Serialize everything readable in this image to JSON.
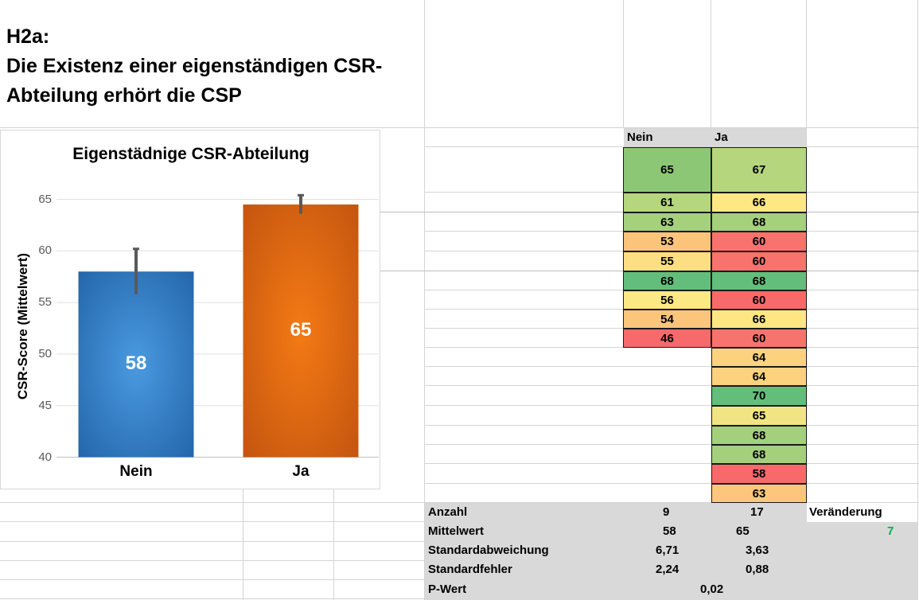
{
  "title": {
    "line1": "H2a:",
    "line2": "Die Existenz einer eigenständigen CSR-",
    "line3": "Abteilung erhört die CSP"
  },
  "table": {
    "col_nein": "Nein",
    "col_ja": "Ja",
    "nein_values": [
      "65",
      "61",
      "63",
      "53",
      "55",
      "68",
      "56",
      "54",
      "46"
    ],
    "ja_values": [
      "67",
      "66",
      "68",
      "60",
      "60",
      "68",
      "60",
      "66",
      "60",
      "64",
      "64",
      "70",
      "65",
      "68",
      "68",
      "58",
      "63"
    ],
    "nein_colors": [
      "#8cc775",
      "#b5d67c",
      "#a5d07c",
      "#fcc47b",
      "#fede82",
      "#63be7b",
      "#fce983",
      "#fcc57c",
      "#f8696b"
    ],
    "ja_colors": [
      "#b5d67c",
      "#ffe784",
      "#a5d07c",
      "#f8736d",
      "#f8736d",
      "#63be7b",
      "#f8696b",
      "#fee783",
      "#f8736d",
      "#fcd27f",
      "#fcd27f",
      "#63be7b",
      "#f1e583",
      "#a4d07c",
      "#a4d07c",
      "#f8696b",
      "#fcc77c"
    ]
  },
  "stats": {
    "anzahl_label": "Anzahl",
    "anzahl_nein": "9",
    "anzahl_ja": "17",
    "veraenderung_label": "Veränderung",
    "veraenderung_value": "7",
    "veraenderung_color": "#00b050",
    "mittelwert_label": "Mittelwert",
    "mittelwert_nein": "58",
    "mittelwert_ja": "65",
    "stdabw_label": "Standardabweichung",
    "stdabw_nein": "6,71",
    "stdabw_ja": "3,63",
    "stdfehler_label": "Standardfehler",
    "stdfehler_nein": "2,24",
    "stdfehler_ja": "0,88",
    "pwert_label": "P-Wert",
    "pwert_value": "0,02"
  },
  "chart_data": {
    "type": "bar",
    "title": "Eigenstädnige CSR-Abteilung",
    "ylabel": "CSR-Score (Mittelwert)",
    "xlabel": "",
    "categories": [
      "Nein",
      "Ja"
    ],
    "values": [
      58,
      64.5
    ],
    "data_labels": [
      "58",
      "65"
    ],
    "errors": [
      2.2,
      0.9
    ],
    "ylim": [
      40,
      66
    ],
    "yticks": [
      "40",
      "45",
      "50",
      "55",
      "60",
      "65"
    ],
    "colors": [
      "#2e75b6",
      "#e86a10"
    ],
    "grid": true
  }
}
